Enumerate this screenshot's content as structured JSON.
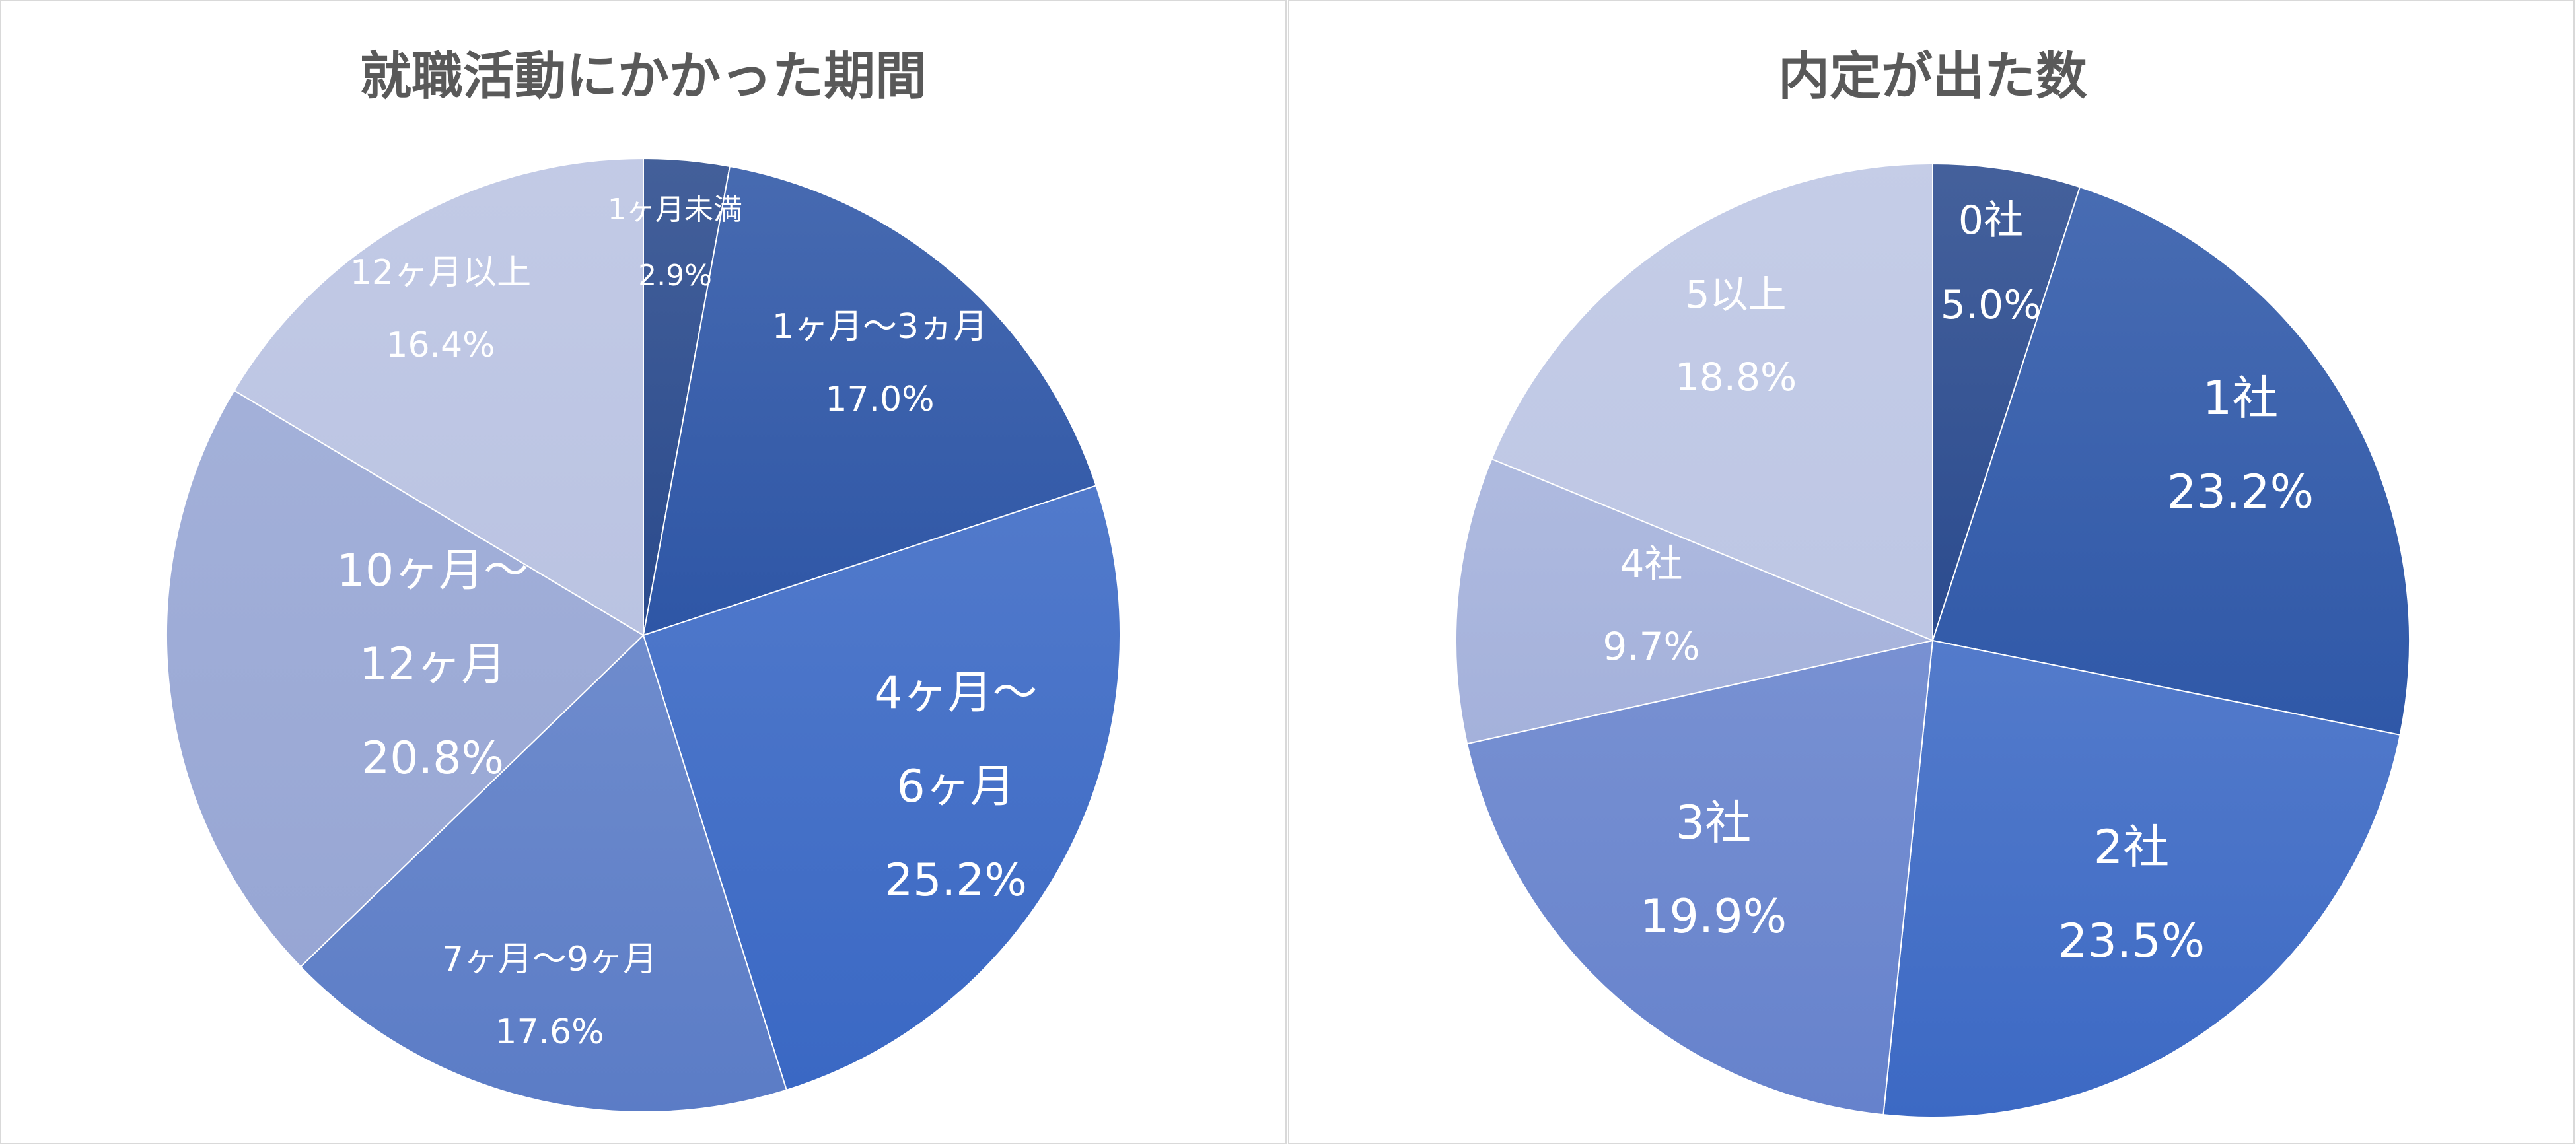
{
  "chart_data": [
    {
      "type": "pie",
      "title": "就職活動にかかった期間",
      "slices": [
        {
          "label": [
            "1ヶ月未満"
          ],
          "pct": "2.9%",
          "value": 2.9,
          "color": "#2a4a8c"
        },
        {
          "label": [
            "1ヶ月～3ヵ月"
          ],
          "pct": "17.0%",
          "value": 17.0,
          "color": "#2e56a6"
        },
        {
          "label": [
            "4ヶ月～",
            "6ヶ月"
          ],
          "pct": "25.2%",
          "value": 25.2,
          "color": "#3a68c4"
        },
        {
          "label": [
            "7ヶ月～9ヶ月"
          ],
          "pct": "17.6%",
          "value": 17.6,
          "color": "#5b7cc6"
        },
        {
          "label": [
            "10ヶ月～",
            "12ヶ月"
          ],
          "pct": "20.8%",
          "value": 20.8,
          "color": "#97a6d4"
        },
        {
          "label": [
            "12ヶ月以上"
          ],
          "pct": "16.4%",
          "value": 16.4,
          "color": "#bac3e2"
        }
      ]
    },
    {
      "type": "pie",
      "title": "内定が出た数",
      "slices": [
        {
          "label": [
            "0社"
          ],
          "pct": "5.0%",
          "value": 5.0,
          "color": "#2b4b8e"
        },
        {
          "label": [
            "1社"
          ],
          "pct": "23.2%",
          "value": 23.2,
          "color": "#2f58a8"
        },
        {
          "label": [
            "2社"
          ],
          "pct": "23.5%",
          "value": 23.5,
          "color": "#3c69c4"
        },
        {
          "label": [
            "3社"
          ],
          "pct": "19.9%",
          "value": 19.9,
          "color": "#6682cc"
        },
        {
          "label": [
            "4社"
          ],
          "pct": "9.7%",
          "value": 9.7,
          "color": "#a4b1db"
        },
        {
          "label": [
            "5以上"
          ],
          "pct": "18.8%",
          "value": 18.8,
          "color": "#bdc6e4"
        }
      ]
    }
  ]
}
